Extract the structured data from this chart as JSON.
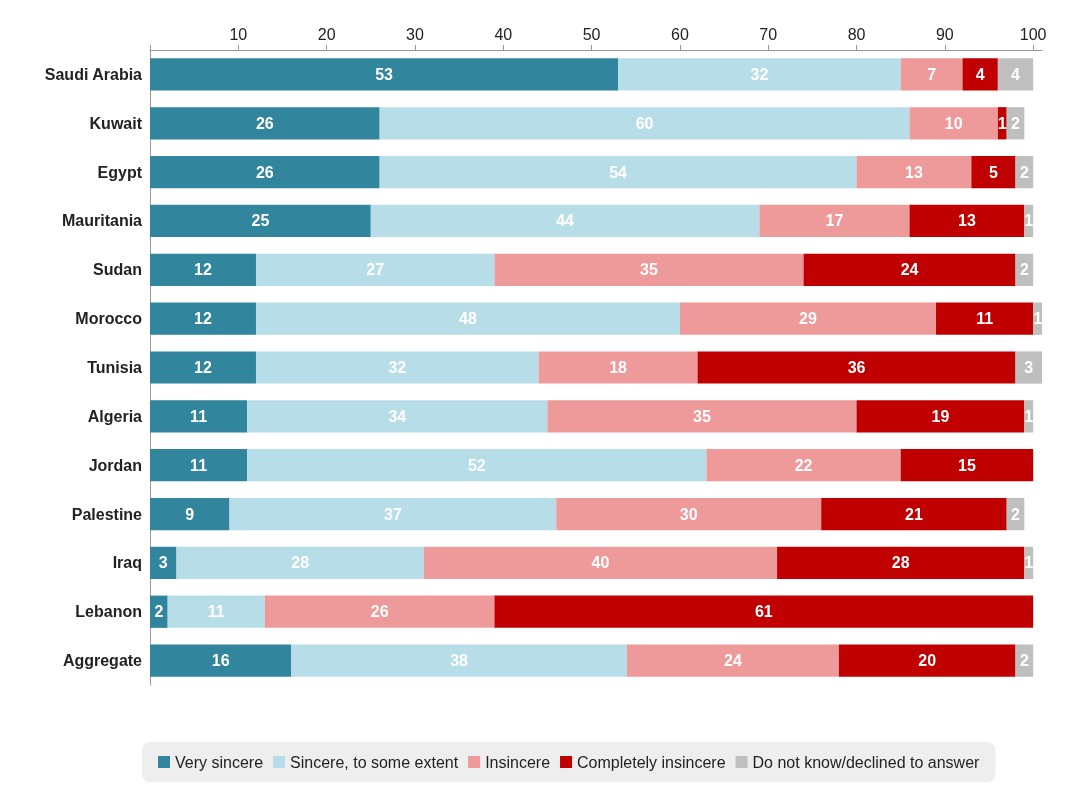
{
  "chart_data": {
    "type": "bar",
    "orientation": "horizontal",
    "stacked": true,
    "data_labels": true,
    "grid": false,
    "legend": "bottom",
    "categories": [
      "Saudi Arabia",
      "Kuwait",
      "Egypt",
      "Mauritania",
      "Sudan",
      "Morocco",
      "Tunisia",
      "Algeria",
      "Jordan",
      "Palestine",
      "Iraq",
      "Lebanon",
      "Aggregate"
    ],
    "xlim": [
      0,
      101
    ],
    "xticks": [
      {
        "value": 0,
        "label": null
      },
      10,
      20,
      30,
      40,
      50,
      60,
      70,
      80,
      90,
      100
    ],
    "series": [
      {
        "name": "Very sincere",
        "color": "#31859c",
        "values": [
          53,
          26,
          26,
          25,
          12,
          12,
          12,
          11,
          11,
          9,
          3,
          2,
          16
        ]
      },
      {
        "name": "Sincere, to some extent",
        "color": "#b7dde8",
        "values": [
          32,
          60,
          54,
          44,
          27,
          48,
          32,
          34,
          52,
          37,
          28,
          11,
          38
        ]
      },
      {
        "name": "Insincere",
        "color": "#ee9a9a",
        "values": [
          7,
          10,
          13,
          17,
          35,
          29,
          18,
          35,
          22,
          30,
          40,
          26,
          24
        ]
      },
      {
        "name": "Completely insincere",
        "color": "#c00000",
        "values": [
          4,
          1,
          5,
          13,
          24,
          11,
          36,
          19,
          15,
          21,
          28,
          61,
          20
        ]
      },
      {
        "name": "Do not know/declined to answer",
        "color": "#bfbfbf",
        "values": [
          4,
          2,
          2,
          1,
          2,
          1,
          3,
          1,
          null,
          2,
          1,
          null,
          2
        ]
      }
    ]
  }
}
